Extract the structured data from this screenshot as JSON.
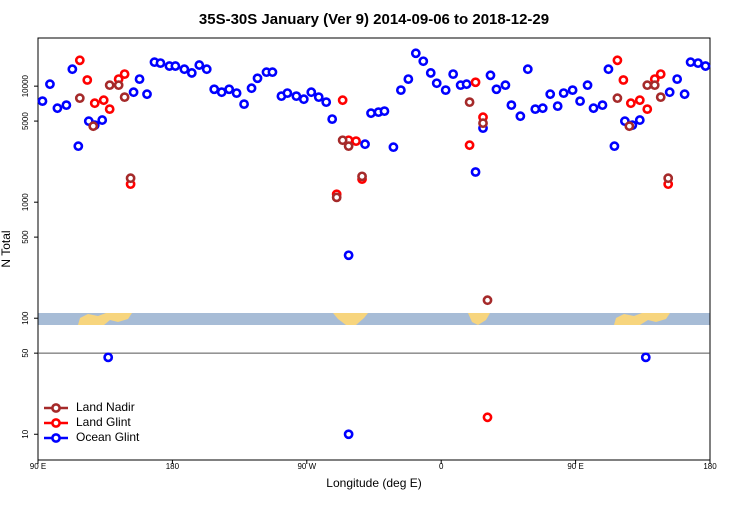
{
  "chart_data": {
    "type": "scatter",
    "title": "35S-30S January (Ver 9)   2014-09-06 to 2018-12-29",
    "x_label": "Longitude (deg E)",
    "y_label": "N Total",
    "xlim": [
      90,
      540
    ],
    "xticks": [
      {
        "value": 90,
        "label": "90 E"
      },
      180,
      {
        "value": 270,
        "label": "90 W"
      },
      {
        "value": 360,
        "label": "0"
      },
      {
        "value": 450,
        "label": "90 E"
      },
      {
        "value": 540,
        "label": "180"
      }
    ],
    "ylim": [
      6,
      26000
    ],
    "yticks": [
      10,
      50,
      100,
      500,
      1000,
      5000,
      10000
    ],
    "ylog": true,
    "hline": 50,
    "legend": "bottom-left",
    "series": [
      {
        "name": "Land Nadir",
        "color": "#a52a2a",
        "x": [
          118,
          127,
          138,
          144,
          148,
          152,
          290,
          294,
          298,
          307,
          379,
          388,
          391,
          478,
          486,
          498,
          503,
          507,
          512
        ],
        "values": [
          7880,
          4520,
          10200,
          10200,
          8040,
          1610,
          1100,
          3420,
          3040,
          1670,
          7280,
          4800,
          143,
          7880,
          4520,
          10200,
          10200,
          8040,
          1610
        ]
      },
      {
        "name": "Land Glint",
        "color": "#ff0000",
        "x": [
          118,
          123,
          128,
          134,
          138,
          144,
          148,
          152,
          290,
          294,
          298,
          303,
          307,
          379,
          383,
          388,
          391,
          478,
          482,
          487,
          493,
          498,
          503,
          507,
          512
        ],
        "values": [
          16700,
          11300,
          7130,
          7570,
          6340,
          11500,
          12700,
          1430,
          1170,
          7570,
          3420,
          3360,
          1580,
          3100,
          10800,
          5400,
          14,
          16700,
          11300,
          7130,
          7570,
          6340,
          11500,
          12700,
          1430
        ]
      },
      {
        "name": "Ocean Glint",
        "color": "#0000ff",
        "x": [
          93,
          98,
          103,
          109,
          113,
          117,
          124,
          128,
          133,
          137,
          154,
          158,
          163,
          168,
          172,
          178,
          182,
          188,
          193,
          198,
          203,
          208,
          213,
          218,
          223,
          228,
          233,
          237,
          243,
          247,
          253,
          257,
          263,
          268,
          273,
          278,
          283,
          287,
          298,
          298,
          309,
          313,
          318,
          322,
          328,
          333,
          338,
          343,
          348,
          353,
          357,
          363,
          368,
          373,
          377,
          383,
          388,
          393,
          397,
          403,
          407,
          413,
          418,
          423,
          428,
          433,
          438,
          442,
          448,
          453,
          458,
          462,
          468,
          472,
          476,
          483,
          488,
          493,
          497,
          513,
          518,
          523,
          527,
          532,
          537
        ],
        "values": [
          7430,
          10400,
          6460,
          6860,
          14000,
          3040,
          4990,
          4610,
          5100,
          46,
          8870,
          11500,
          8530,
          16100,
          15800,
          14900,
          14900,
          14000,
          13000,
          15200,
          14000,
          9400,
          8870,
          9400,
          8710,
          7000,
          9600,
          11700,
          13200,
          13200,
          8200,
          8710,
          8200,
          7720,
          8870,
          8040,
          7280,
          5200,
          349,
          10,
          3160,
          5850,
          5970,
          6090,
          2980,
          9240,
          11500,
          19200,
          16400,
          13000,
          10600,
          9240,
          12700,
          10200,
          10400,
          1820,
          4350,
          12400,
          9400,
          10200,
          6860,
          5510,
          14000,
          6340,
          6460,
          8530,
          6730,
          8710,
          9240,
          7430,
          10200,
          6460,
          6860,
          14000,
          3040,
          4990,
          4610,
          5100,
          46,
          8870,
          11500,
          8530,
          16100,
          15800,
          14900
        ]
      }
    ]
  }
}
